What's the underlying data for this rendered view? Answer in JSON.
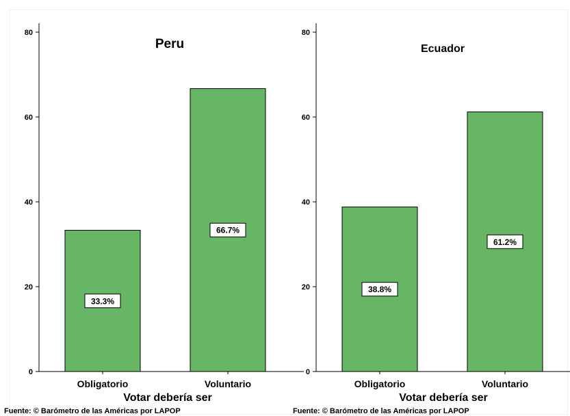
{
  "chart_data": [
    {
      "type": "bar",
      "title": "Peru",
      "xlabel": "Votar debería ser",
      "ylabel": "",
      "categories": [
        "Obligatorio",
        "Voluntario"
      ],
      "values": [
        33.3,
        66.7
      ],
      "data_labels": [
        "33.3%",
        "66.7%"
      ],
      "ylim": [
        0,
        80
      ],
      "yticks": [
        0,
        20,
        40,
        60,
        80
      ],
      "source": "Fuente: © Barómetro de las Américas por LAPOP",
      "grid": false
    },
    {
      "type": "bar",
      "title": "Ecuador",
      "xlabel": "Votar debería ser",
      "ylabel": "",
      "categories": [
        "Obligatorio",
        "Voluntario"
      ],
      "values": [
        38.8,
        61.2
      ],
      "data_labels": [
        "38.8%",
        "61.2%"
      ],
      "ylim": [
        0,
        80
      ],
      "yticks": [
        0,
        20,
        40,
        60,
        80
      ],
      "source": "Fuente: © Barómetro de las Américas por LAPOP",
      "grid": false
    }
  ],
  "colors": {
    "bar_fill": "#66b666",
    "bar_stroke": "#000000"
  }
}
